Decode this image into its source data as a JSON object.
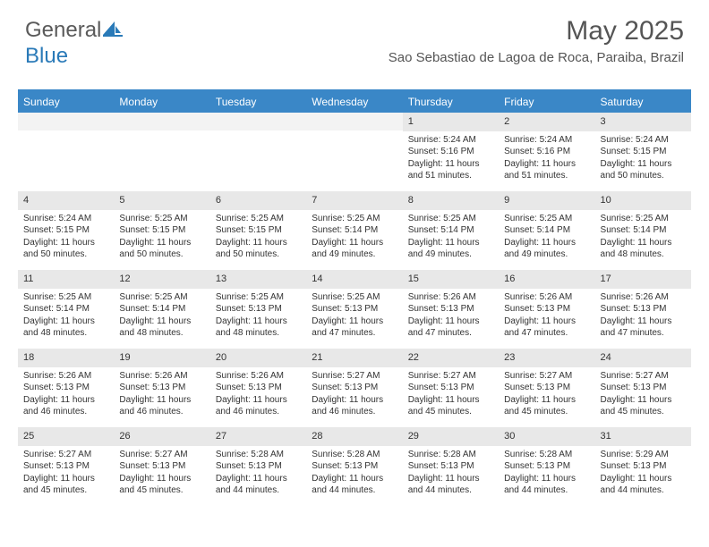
{
  "logo": {
    "text1": "General",
    "text2": "Blue"
  },
  "header": {
    "month_title": "May 2025",
    "location": "Sao Sebastiao de Lagoa de Roca, Paraiba, Brazil"
  },
  "colors": {
    "header_bg": "#3a87c7",
    "daynum_bg": "#e8e8e8",
    "text": "#333333"
  },
  "day_headers": [
    "Sunday",
    "Monday",
    "Tuesday",
    "Wednesday",
    "Thursday",
    "Friday",
    "Saturday"
  ],
  "weeks": [
    [
      {
        "empty": true
      },
      {
        "empty": true
      },
      {
        "empty": true
      },
      {
        "empty": true
      },
      {
        "num": "1",
        "sunrise": "Sunrise: 5:24 AM",
        "sunset": "Sunset: 5:16 PM",
        "daylight": "Daylight: 11 hours and 51 minutes."
      },
      {
        "num": "2",
        "sunrise": "Sunrise: 5:24 AM",
        "sunset": "Sunset: 5:16 PM",
        "daylight": "Daylight: 11 hours and 51 minutes."
      },
      {
        "num": "3",
        "sunrise": "Sunrise: 5:24 AM",
        "sunset": "Sunset: 5:15 PM",
        "daylight": "Daylight: 11 hours and 50 minutes."
      }
    ],
    [
      {
        "num": "4",
        "sunrise": "Sunrise: 5:24 AM",
        "sunset": "Sunset: 5:15 PM",
        "daylight": "Daylight: 11 hours and 50 minutes."
      },
      {
        "num": "5",
        "sunrise": "Sunrise: 5:25 AM",
        "sunset": "Sunset: 5:15 PM",
        "daylight": "Daylight: 11 hours and 50 minutes."
      },
      {
        "num": "6",
        "sunrise": "Sunrise: 5:25 AM",
        "sunset": "Sunset: 5:15 PM",
        "daylight": "Daylight: 11 hours and 50 minutes."
      },
      {
        "num": "7",
        "sunrise": "Sunrise: 5:25 AM",
        "sunset": "Sunset: 5:14 PM",
        "daylight": "Daylight: 11 hours and 49 minutes."
      },
      {
        "num": "8",
        "sunrise": "Sunrise: 5:25 AM",
        "sunset": "Sunset: 5:14 PM",
        "daylight": "Daylight: 11 hours and 49 minutes."
      },
      {
        "num": "9",
        "sunrise": "Sunrise: 5:25 AM",
        "sunset": "Sunset: 5:14 PM",
        "daylight": "Daylight: 11 hours and 49 minutes."
      },
      {
        "num": "10",
        "sunrise": "Sunrise: 5:25 AM",
        "sunset": "Sunset: 5:14 PM",
        "daylight": "Daylight: 11 hours and 48 minutes."
      }
    ],
    [
      {
        "num": "11",
        "sunrise": "Sunrise: 5:25 AM",
        "sunset": "Sunset: 5:14 PM",
        "daylight": "Daylight: 11 hours and 48 minutes."
      },
      {
        "num": "12",
        "sunrise": "Sunrise: 5:25 AM",
        "sunset": "Sunset: 5:14 PM",
        "daylight": "Daylight: 11 hours and 48 minutes."
      },
      {
        "num": "13",
        "sunrise": "Sunrise: 5:25 AM",
        "sunset": "Sunset: 5:13 PM",
        "daylight": "Daylight: 11 hours and 48 minutes."
      },
      {
        "num": "14",
        "sunrise": "Sunrise: 5:25 AM",
        "sunset": "Sunset: 5:13 PM",
        "daylight": "Daylight: 11 hours and 47 minutes."
      },
      {
        "num": "15",
        "sunrise": "Sunrise: 5:26 AM",
        "sunset": "Sunset: 5:13 PM",
        "daylight": "Daylight: 11 hours and 47 minutes."
      },
      {
        "num": "16",
        "sunrise": "Sunrise: 5:26 AM",
        "sunset": "Sunset: 5:13 PM",
        "daylight": "Daylight: 11 hours and 47 minutes."
      },
      {
        "num": "17",
        "sunrise": "Sunrise: 5:26 AM",
        "sunset": "Sunset: 5:13 PM",
        "daylight": "Daylight: 11 hours and 47 minutes."
      }
    ],
    [
      {
        "num": "18",
        "sunrise": "Sunrise: 5:26 AM",
        "sunset": "Sunset: 5:13 PM",
        "daylight": "Daylight: 11 hours and 46 minutes."
      },
      {
        "num": "19",
        "sunrise": "Sunrise: 5:26 AM",
        "sunset": "Sunset: 5:13 PM",
        "daylight": "Daylight: 11 hours and 46 minutes."
      },
      {
        "num": "20",
        "sunrise": "Sunrise: 5:26 AM",
        "sunset": "Sunset: 5:13 PM",
        "daylight": "Daylight: 11 hours and 46 minutes."
      },
      {
        "num": "21",
        "sunrise": "Sunrise: 5:27 AM",
        "sunset": "Sunset: 5:13 PM",
        "daylight": "Daylight: 11 hours and 46 minutes."
      },
      {
        "num": "22",
        "sunrise": "Sunrise: 5:27 AM",
        "sunset": "Sunset: 5:13 PM",
        "daylight": "Daylight: 11 hours and 45 minutes."
      },
      {
        "num": "23",
        "sunrise": "Sunrise: 5:27 AM",
        "sunset": "Sunset: 5:13 PM",
        "daylight": "Daylight: 11 hours and 45 minutes."
      },
      {
        "num": "24",
        "sunrise": "Sunrise: 5:27 AM",
        "sunset": "Sunset: 5:13 PM",
        "daylight": "Daylight: 11 hours and 45 minutes."
      }
    ],
    [
      {
        "num": "25",
        "sunrise": "Sunrise: 5:27 AM",
        "sunset": "Sunset: 5:13 PM",
        "daylight": "Daylight: 11 hours and 45 minutes."
      },
      {
        "num": "26",
        "sunrise": "Sunrise: 5:27 AM",
        "sunset": "Sunset: 5:13 PM",
        "daylight": "Daylight: 11 hours and 45 minutes."
      },
      {
        "num": "27",
        "sunrise": "Sunrise: 5:28 AM",
        "sunset": "Sunset: 5:13 PM",
        "daylight": "Daylight: 11 hours and 44 minutes."
      },
      {
        "num": "28",
        "sunrise": "Sunrise: 5:28 AM",
        "sunset": "Sunset: 5:13 PM",
        "daylight": "Daylight: 11 hours and 44 minutes."
      },
      {
        "num": "29",
        "sunrise": "Sunrise: 5:28 AM",
        "sunset": "Sunset: 5:13 PM",
        "daylight": "Daylight: 11 hours and 44 minutes."
      },
      {
        "num": "30",
        "sunrise": "Sunrise: 5:28 AM",
        "sunset": "Sunset: 5:13 PM",
        "daylight": "Daylight: 11 hours and 44 minutes."
      },
      {
        "num": "31",
        "sunrise": "Sunrise: 5:29 AM",
        "sunset": "Sunset: 5:13 PM",
        "daylight": "Daylight: 11 hours and 44 minutes."
      }
    ]
  ]
}
